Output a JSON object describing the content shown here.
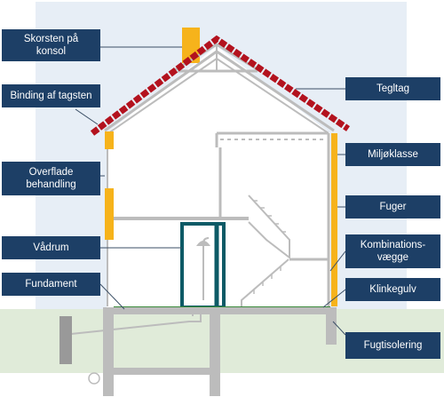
{
  "labels": {
    "skorsten": "Skorsten på\nkonsol",
    "binding": "Binding af tagsten",
    "overflade": "Overflade\nbehandling",
    "vaadrum": "Vådrum",
    "fundament": "Fundament",
    "tegltag": "Tegltag",
    "miljoeklasse": "Miljøklasse",
    "fuger": "Fuger",
    "kombination": "Kombinations-\nvægge",
    "klinkegulv": "Klinkegulv",
    "fugtisolering": "Fugtisolering"
  },
  "colors": {
    "label_bg": "#1d3f66",
    "sky": "#e7eef6",
    "ground": "#e0ebd9",
    "roof_tiles": "#b3121e",
    "accent_yellow": "#f6b31b",
    "shower": "#0d5a66",
    "structure": "#bcbcbc"
  },
  "icons": {
    "shower": "shower-icon",
    "drain": "drain-pipe-icon"
  }
}
